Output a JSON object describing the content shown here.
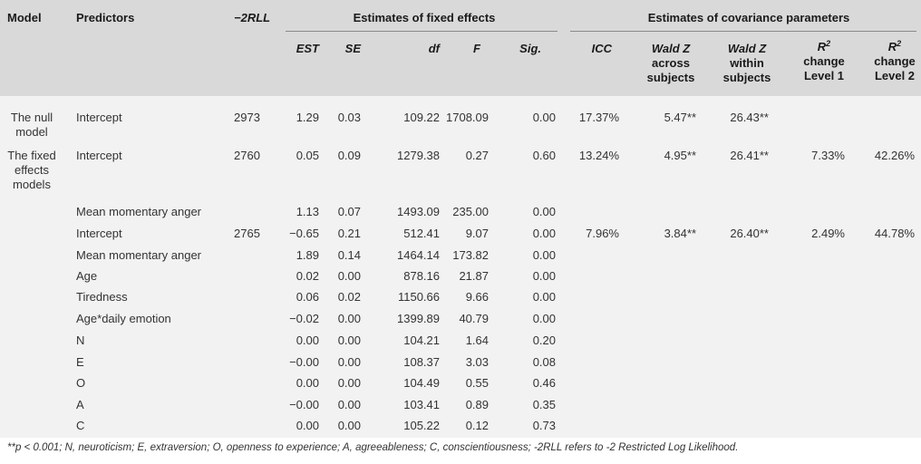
{
  "header": {
    "model": "Model",
    "predictors": "Predictors",
    "neg2rll": "−2RLL",
    "fixed_group": "Estimates of fixed effects",
    "cov_group": "Estimates of covariance parameters",
    "est": "EST",
    "se": "SE",
    "df": "df",
    "f": "F",
    "sig": "Sig.",
    "icc": "ICC",
    "wald_across": [
      "Wald Z",
      "across",
      "subjects"
    ],
    "wald_within": [
      "Wald Z",
      "within",
      "subjects"
    ],
    "r2_l1": [
      "R",
      "2",
      "change",
      "Level 1"
    ],
    "r2_l2": [
      "R",
      "2",
      "change",
      "Level 2"
    ]
  },
  "rows": [
    {
      "model": [
        "The null",
        "model"
      ],
      "predictor": "Intercept",
      "rll": "2973",
      "est": "1.29",
      "se": "0.03",
      "df": "109.22",
      "f": "1708.09",
      "sig": "0.00",
      "icc": "17.37%",
      "wald_across": "5.47**",
      "wald_within": "26.43**",
      "r2_l1": "",
      "r2_l2": ""
    },
    {
      "model": [
        "The fixed",
        "effects",
        "models"
      ],
      "predictor": "Intercept",
      "rll": "2760",
      "est": "0.05",
      "se": "0.09",
      "df": "1279.38",
      "f": "0.27",
      "sig": "0.60",
      "icc": "13.24%",
      "wald_across": "4.95**",
      "wald_within": "26.41**",
      "r2_l1": "7.33%",
      "r2_l2": "42.26%"
    },
    {
      "model": [],
      "predictor": "Mean momentary anger",
      "rll": "",
      "est": "1.13",
      "se": "0.07",
      "df": "1493.09",
      "f": "235.00",
      "sig": "0.00",
      "icc": "",
      "wald_across": "",
      "wald_within": "",
      "r2_l1": "",
      "r2_l2": ""
    },
    {
      "model": [],
      "predictor": "Intercept",
      "rll": "2765",
      "est": "−0.65",
      "se": "0.21",
      "df": "512.41",
      "f": "9.07",
      "sig": "0.00",
      "icc": "7.96%",
      "wald_across": "3.84**",
      "wald_within": "26.40**",
      "r2_l1": "2.49%",
      "r2_l2": "44.78%"
    },
    {
      "model": [],
      "predictor": "Mean momentary anger",
      "rll": "",
      "est": "1.89",
      "se": "0.14",
      "df": "1464.14",
      "f": "173.82",
      "sig": "0.00",
      "icc": "",
      "wald_across": "",
      "wald_within": "",
      "r2_l1": "",
      "r2_l2": ""
    },
    {
      "model": [],
      "predictor": "Age",
      "rll": "",
      "est": "0.02",
      "se": "0.00",
      "df": "878.16",
      "f": "21.87",
      "sig": "0.00",
      "icc": "",
      "wald_across": "",
      "wald_within": "",
      "r2_l1": "",
      "r2_l2": ""
    },
    {
      "model": [],
      "predictor": "Tiredness",
      "rll": "",
      "est": "0.06",
      "se": "0.02",
      "df": "1150.66",
      "f": "9.66",
      "sig": "0.00",
      "icc": "",
      "wald_across": "",
      "wald_within": "",
      "r2_l1": "",
      "r2_l2": ""
    },
    {
      "model": [],
      "predictor": "Age*daily emotion",
      "rll": "",
      "est": "−0.02",
      "se": "0.00",
      "df": "1399.89",
      "f": "40.79",
      "sig": "0.00",
      "icc": "",
      "wald_across": "",
      "wald_within": "",
      "r2_l1": "",
      "r2_l2": ""
    },
    {
      "model": [],
      "predictor": "N",
      "rll": "",
      "est": "0.00",
      "se": "0.00",
      "df": "104.21",
      "f": "1.64",
      "sig": "0.20",
      "icc": "",
      "wald_across": "",
      "wald_within": "",
      "r2_l1": "",
      "r2_l2": ""
    },
    {
      "model": [],
      "predictor": "E",
      "rll": "",
      "est": "−0.00",
      "se": "0.00",
      "df": "108.37",
      "f": "3.03",
      "sig": "0.08",
      "icc": "",
      "wald_across": "",
      "wald_within": "",
      "r2_l1": "",
      "r2_l2": ""
    },
    {
      "model": [],
      "predictor": "O",
      "rll": "",
      "est": "0.00",
      "se": "0.00",
      "df": "104.49",
      "f": "0.55",
      "sig": "0.46",
      "icc": "",
      "wald_across": "",
      "wald_within": "",
      "r2_l1": "",
      "r2_l2": ""
    },
    {
      "model": [],
      "predictor": "A",
      "rll": "",
      "est": "−0.00",
      "se": "0.00",
      "df": "103.41",
      "f": "0.89",
      "sig": "0.35",
      "icc": "",
      "wald_across": "",
      "wald_within": "",
      "r2_l1": "",
      "r2_l2": ""
    },
    {
      "model": [],
      "predictor": "C",
      "rll": "",
      "est": "0.00",
      "se": "0.00",
      "df": "105.22",
      "f": "0.12",
      "sig": "0.73",
      "icc": "",
      "wald_across": "",
      "wald_within": "",
      "r2_l1": "",
      "r2_l2": ""
    }
  ],
  "footnote": "**p < 0.001; N, neuroticism; E, extraversion; O, openness to experience; A, agreeableness; C, conscientiousness; -2RLL refers to -2 Restricted Log Likelihood."
}
